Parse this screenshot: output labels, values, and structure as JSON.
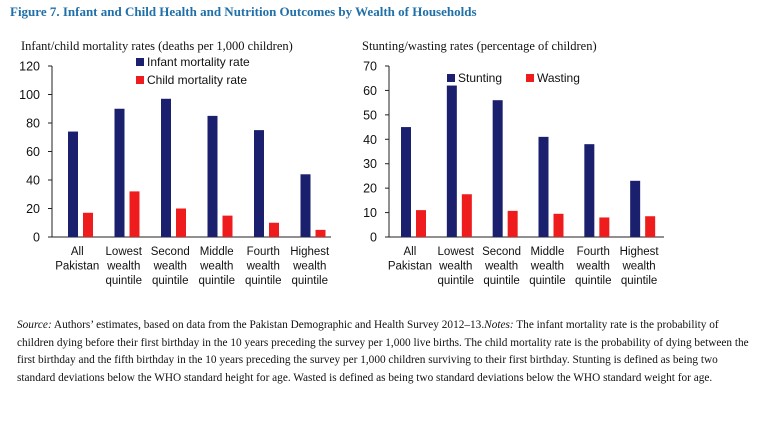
{
  "figure_title": "Figure 7. Infant and Child Health and Nutrition Outcomes by Wealth of Households",
  "caption": {
    "source_label": "Source:",
    "source_text": " Authors’ estimates, based on data from the Pakistan Demographic and Health Survey 2012–13.",
    "notes_label": "Notes:",
    "notes_text": " The infant mortality rate is the probability of children dying before their first birthday in the 10 years preceding the survey per 1,000 live births. The child mortality rate is the probability of dying between the first birthday and the fifth birthday in the 10 years preceding the survey per 1,000 children surviving to their first birthday. Stunting is defined as being two standard deviations below the WHO standard height for age. Wasted is defined as being two standard deviations below the WHO standard weight for age."
  },
  "colors": {
    "primary": "#1a1f6e",
    "secondary": "#ee1c1c"
  },
  "chart_data": [
    {
      "type": "bar",
      "title": "Infant/child mortality rates (deaths per 1,000 children)",
      "categories": [
        [
          "All",
          "Pakistan"
        ],
        [
          "Lowest",
          "wealth",
          "quintile"
        ],
        [
          "Second",
          "wealth",
          "quintile"
        ],
        [
          "Middle",
          "wealth",
          "quintile"
        ],
        [
          "Fourth",
          "wealth",
          "quintile"
        ],
        [
          "Highest",
          "wealth",
          "quintile"
        ]
      ],
      "series": [
        {
          "name": "Infant mortality rate",
          "values": [
            74,
            90,
            97,
            85,
            75,
            44
          ]
        },
        {
          "name": "Child mortality rate",
          "values": [
            17,
            32,
            20,
            15,
            10,
            5
          ]
        }
      ],
      "ylim": [
        0,
        120
      ],
      "yticks": [
        0,
        20,
        40,
        60,
        80,
        100,
        120
      ],
      "grid": false,
      "legend": "top-center"
    },
    {
      "type": "bar",
      "title": "Stunting/wasting rates (percentage of children)",
      "categories": [
        [
          "All",
          "Pakistan"
        ],
        [
          "Lowest",
          "wealth",
          "quintile"
        ],
        [
          "Second",
          "wealth",
          "quintile"
        ],
        [
          "Middle",
          "wealth",
          "quintile"
        ],
        [
          "Fourth",
          "wealth",
          "quintile"
        ],
        [
          "Highest",
          "wealth",
          "quintile"
        ]
      ],
      "series": [
        {
          "name": "Stunting",
          "values": [
            45,
            62,
            56,
            41,
            38,
            23
          ]
        },
        {
          "name": "Wasting",
          "values": [
            11,
            17.5,
            10.7,
            9.5,
            8,
            8.5
          ]
        }
      ],
      "ylim": [
        0,
        70
      ],
      "yticks": [
        0,
        10,
        20,
        30,
        40,
        50,
        60,
        70
      ],
      "grid": false,
      "legend": "top-center"
    }
  ]
}
